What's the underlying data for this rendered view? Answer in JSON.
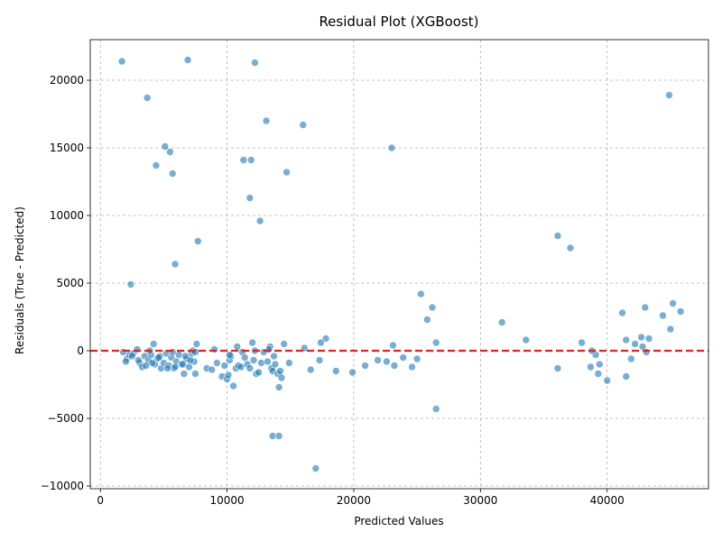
{
  "chart_data": {
    "type": "scatter",
    "title": "Residual Plot (XGBoost)",
    "xlabel": "Predicted Values",
    "ylabel": "Residuals (True - Predicted)",
    "xlim": [
      -800,
      48000
    ],
    "ylim": [
      -10200,
      23000
    ],
    "xticks": [
      0,
      10000,
      20000,
      30000,
      40000
    ],
    "xtick_labels": [
      "0",
      "10000",
      "20000",
      "30000",
      "40000"
    ],
    "yticks": [
      -10000,
      -5000,
      0,
      5000,
      10000,
      15000,
      20000
    ],
    "ytick_labels": [
      "−10000",
      "−5000",
      "0",
      "5000",
      "10000",
      "15000",
      "20000"
    ],
    "grid": true,
    "reference_line": {
      "y": 0,
      "color": "#d62728",
      "style": "dashed"
    },
    "point_color": "#1f77b4",
    "points": [
      [
        1700,
        21400
      ],
      [
        6900,
        21500
      ],
      [
        12200,
        21300
      ],
      [
        44900,
        18900
      ],
      [
        3700,
        18700
      ],
      [
        13100,
        17000
      ],
      [
        16000,
        16700
      ],
      [
        5100,
        15100
      ],
      [
        23000,
        15000
      ],
      [
        5500,
        14700
      ],
      [
        11300,
        14100
      ],
      [
        11900,
        14100
      ],
      [
        4400,
        13700
      ],
      [
        14700,
        13200
      ],
      [
        5700,
        13100
      ],
      [
        11800,
        11300
      ],
      [
        12600,
        9600
      ],
      [
        36100,
        8500
      ],
      [
        37100,
        7600
      ],
      [
        7700,
        8100
      ],
      [
        5900,
        6400
      ],
      [
        2400,
        4900
      ],
      [
        25300,
        4200
      ],
      [
        26200,
        3200
      ],
      [
        43000,
        3200
      ],
      [
        45200,
        3500
      ],
      [
        45800,
        2900
      ],
      [
        41200,
        2800
      ],
      [
        44400,
        2600
      ],
      [
        25800,
        2300
      ],
      [
        31700,
        2100
      ],
      [
        45000,
        1600
      ],
      [
        42700,
        1000
      ],
      [
        43300,
        900
      ],
      [
        33600,
        800
      ],
      [
        41500,
        800
      ],
      [
        17800,
        900
      ],
      [
        17400,
        600
      ],
      [
        26500,
        600
      ],
      [
        38000,
        600
      ],
      [
        42200,
        500
      ],
      [
        42800,
        300
      ],
      [
        16100,
        200
      ],
      [
        23100,
        400
      ],
      [
        1800,
        -100
      ],
      [
        2100,
        -600
      ],
      [
        2300,
        -300
      ],
      [
        2600,
        -200
      ],
      [
        2900,
        100
      ],
      [
        3100,
        -900
      ],
      [
        3300,
        -1200
      ],
      [
        3500,
        -400
      ],
      [
        3800,
        -700
      ],
      [
        4000,
        -300
      ],
      [
        4200,
        500
      ],
      [
        4300,
        -1000
      ],
      [
        4500,
        -600
      ],
      [
        4800,
        -1300
      ],
      [
        5000,
        -900
      ],
      [
        5200,
        -200
      ],
      [
        5400,
        -1100
      ],
      [
        5600,
        -500
      ],
      [
        5800,
        -1300
      ],
      [
        6000,
        -800
      ],
      [
        6200,
        -300
      ],
      [
        6400,
        -1000
      ],
      [
        6600,
        -1700
      ],
      [
        6800,
        -600
      ],
      [
        7000,
        -1200
      ],
      [
        7200,
        -200
      ],
      [
        7400,
        -800
      ],
      [
        7500,
        -1700
      ],
      [
        7600,
        500
      ],
      [
        7300,
        0
      ],
      [
        2000,
        -800
      ],
      [
        2500,
        -400
      ],
      [
        3000,
        -700
      ],
      [
        3600,
        -1100
      ],
      [
        4100,
        -900
      ],
      [
        4700,
        -400
      ],
      [
        5300,
        -1300
      ],
      [
        5900,
        -1200
      ],
      [
        6500,
        -1000
      ],
      [
        7100,
        -700
      ],
      [
        8400,
        -1300
      ],
      [
        8800,
        -1400
      ],
      [
        9200,
        -900
      ],
      [
        9600,
        -1900
      ],
      [
        9800,
        -1100
      ],
      [
        10000,
        -2100
      ],
      [
        10100,
        -1800
      ],
      [
        10200,
        -700
      ],
      [
        10300,
        -400
      ],
      [
        10500,
        -2600
      ],
      [
        10700,
        -1300
      ],
      [
        10800,
        300
      ],
      [
        10900,
        -1100
      ],
      [
        11100,
        -1200
      ],
      [
        11200,
        -100
      ],
      [
        11600,
        -1000
      ],
      [
        11800,
        -1300
      ],
      [
        12000,
        600
      ],
      [
        12100,
        -700
      ],
      [
        12300,
        -1700
      ],
      [
        12500,
        -1600
      ],
      [
        12700,
        -900
      ],
      [
        12900,
        -100
      ],
      [
        13200,
        -800
      ],
      [
        13400,
        300
      ],
      [
        13500,
        -1300
      ],
      [
        13600,
        -1500
      ],
      [
        13700,
        -400
      ],
      [
        13800,
        -1000
      ],
      [
        14000,
        -1700
      ],
      [
        14100,
        -2700
      ],
      [
        14200,
        -1500
      ],
      [
        14300,
        -2000
      ],
      [
        14500,
        500
      ],
      [
        14900,
        -900
      ],
      [
        13600,
        -6300
      ],
      [
        14100,
        -6300
      ],
      [
        17000,
        -8700
      ],
      [
        16600,
        -1400
      ],
      [
        17300,
        -700
      ],
      [
        18600,
        -1500
      ],
      [
        19900,
        -1600
      ],
      [
        20900,
        -1100
      ],
      [
        21900,
        -700
      ],
      [
        22600,
        -800
      ],
      [
        23200,
        -1100
      ],
      [
        23900,
        -500
      ],
      [
        24600,
        -1200
      ],
      [
        25000,
        -600
      ],
      [
        26500,
        -4300
      ],
      [
        36100,
        -1300
      ],
      [
        38700,
        -1200
      ],
      [
        39100,
        -300
      ],
      [
        39300,
        -1700
      ],
      [
        39400,
        -1000
      ],
      [
        40000,
        -2200
      ],
      [
        41500,
        -1900
      ],
      [
        41900,
        -600
      ],
      [
        43100,
        -100
      ],
      [
        38800,
        0
      ],
      [
        9000,
        100
      ],
      [
        10200,
        -300
      ],
      [
        11400,
        -500
      ],
      [
        12200,
        0
      ],
      [
        13300,
        100
      ],
      [
        3900,
        0
      ],
      [
        4600,
        -500
      ],
      [
        5700,
        -100
      ],
      [
        6700,
        -400
      ],
      [
        7500,
        -100
      ]
    ]
  }
}
